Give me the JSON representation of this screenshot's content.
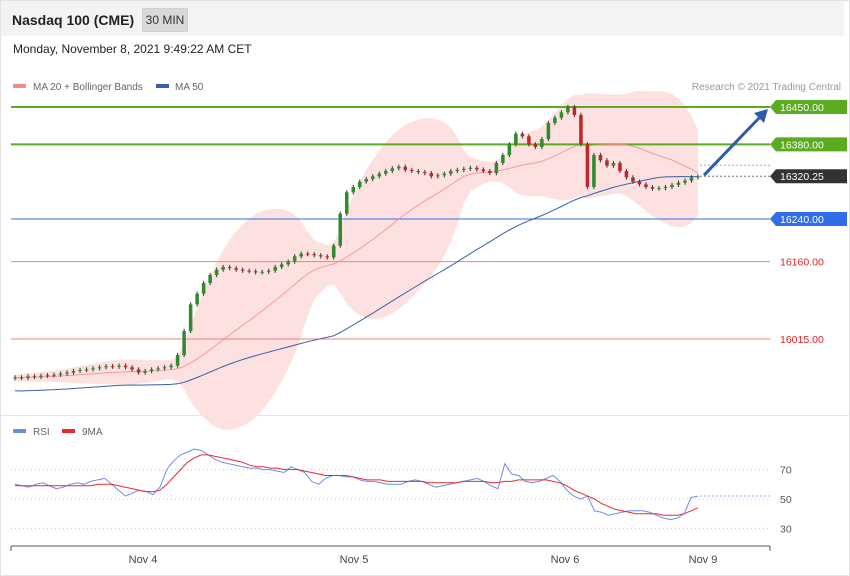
{
  "header": {
    "title": "Nasdaq 100 (CME)",
    "timeframe": "30 MIN",
    "datetime": "Monday, November 8, 2021 9:49:22 AM CET"
  },
  "legend": {
    "ma20_label": "MA 20 + Bollinger Bands",
    "ma50_label": "MA 50",
    "copyright": "Research © 2021 Trading Central",
    "rsi_label": "RSI",
    "ma9_label": "9MA"
  },
  "colors": {
    "green_level": "#5aab1e",
    "blue_level": "#2f6ee8",
    "red_level": "#f08080",
    "current_price": "#333333",
    "ma20": "#f28c8c",
    "ma50": "#3a5fa8",
    "bollinger_fill": "#fde0e0",
    "candle_up": "#2e8b2e",
    "candle_down": "#c0262c",
    "rsi": "#6b8ee6",
    "rsi_ma": "#e52b2b",
    "arrow": "#2d5ca8"
  },
  "chart_data": [
    {
      "type": "candlestick",
      "title": "Nasdaq 100 (CME)",
      "ylim": [
        15850,
        16460
      ],
      "x_ticks": [
        "Nov 4",
        "Nov 5",
        "Nov 6",
        "Nov 9"
      ],
      "levels": [
        {
          "value": 16450,
          "label": "16450.00",
          "kind": "resistance"
        },
        {
          "value": 16380,
          "label": "16380.00",
          "kind": "resistance"
        },
        {
          "value": 16320.25,
          "label": "16320.25",
          "kind": "current"
        },
        {
          "value": 16240,
          "label": "16240.00",
          "kind": "pivot"
        },
        {
          "value": 16160,
          "label": "16160.00",
          "kind": "support"
        },
        {
          "value": 16015,
          "label": "16015.00",
          "kind": "support"
        }
      ],
      "close": [
        15943,
        15942,
        15945,
        15944,
        15946,
        15947,
        15948,
        15950,
        15952,
        15955,
        15957,
        15958,
        15960,
        15962,
        15964,
        15963,
        15965,
        15962,
        15958,
        15952,
        15955,
        15958,
        15960,
        15962,
        15965,
        15985,
        16030,
        16080,
        16100,
        16120,
        16135,
        16145,
        16150,
        16148,
        16145,
        16143,
        16142,
        16140,
        16141,
        16143,
        16150,
        16155,
        16160,
        16170,
        16175,
        16174,
        16172,
        16170,
        16168,
        16190,
        16250,
        16290,
        16300,
        16310,
        16315,
        16320,
        16325,
        16330,
        16335,
        16338,
        16332,
        16330,
        16328,
        16326,
        16320,
        16322,
        16325,
        16330,
        16332,
        16334,
        16336,
        16333,
        16330,
        16326,
        16345,
        16360,
        16380,
        16400,
        16395,
        16380,
        16375,
        16390,
        16420,
        16430,
        16440,
        16450,
        16435,
        16380,
        16300,
        16360,
        16350,
        16340,
        16345,
        16330,
        16318,
        16310,
        16305,
        16300,
        16297,
        16298,
        16300,
        16304,
        16308,
        16312,
        16318,
        16320
      ]
    },
    {
      "type": "line",
      "series": [
        {
          "name": "RSI",
          "values": [
            60,
            59,
            58,
            60,
            61,
            59,
            57,
            58,
            60,
            61,
            60,
            62,
            63,
            64,
            60,
            56,
            52,
            54,
            56,
            55,
            53,
            58,
            70,
            76,
            80,
            82,
            84,
            83,
            80,
            77,
            75,
            74,
            73,
            72,
            71,
            71,
            70,
            70,
            69,
            68,
            72,
            70,
            68,
            62,
            60,
            64,
            66,
            66,
            65,
            65,
            63,
            62,
            62,
            61,
            60,
            60,
            60,
            62,
            63,
            62,
            60,
            58,
            59,
            60,
            61,
            62,
            63,
            64,
            62,
            59,
            57,
            74,
            67,
            66,
            62,
            61,
            62,
            64,
            66,
            62,
            56,
            52,
            50,
            52,
            42,
            41,
            39,
            40,
            41,
            42,
            42,
            42,
            41,
            39,
            37,
            36,
            37,
            40,
            51,
            52
          ]
        },
        {
          "name": "9MA",
          "values": [
            59,
            59,
            59,
            59,
            59,
            59,
            59,
            59,
            59,
            59,
            59,
            59,
            60,
            60,
            60,
            59,
            58,
            57,
            56,
            55,
            55,
            56,
            60,
            65,
            70,
            75,
            78,
            80,
            80,
            79,
            78,
            77,
            76,
            75,
            73,
            72,
            72,
            71,
            71,
            70,
            70,
            70,
            69,
            68,
            67,
            66,
            66,
            66,
            66,
            65,
            64,
            63,
            63,
            63,
            62,
            62,
            62,
            62,
            62,
            62,
            61,
            61,
            61,
            61,
            61,
            62,
            62,
            62,
            62,
            61,
            61,
            62,
            62,
            63,
            63,
            63,
            63,
            63,
            62,
            61,
            59,
            56,
            54,
            52,
            50,
            47,
            45,
            43,
            42,
            41,
            40,
            40,
            40,
            40,
            39,
            39,
            39,
            40,
            42,
            44
          ]
        }
      ],
      "ylim": [
        20,
        90
      ],
      "y_ticks": [
        "70",
        "50",
        "30"
      ]
    }
  ]
}
